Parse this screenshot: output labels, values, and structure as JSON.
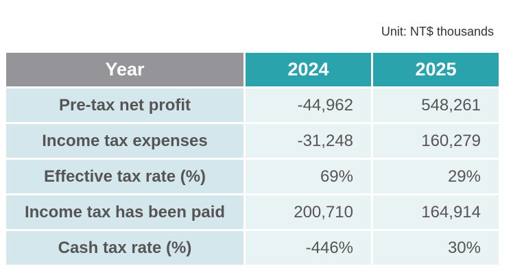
{
  "unit_note": "Unit: NT$ thousands",
  "table": {
    "headers": [
      "Year",
      "2024",
      "2025"
    ],
    "rows": [
      {
        "label": "Pre-tax net profit",
        "v2024": "-44,962",
        "v2025": "548,261"
      },
      {
        "label": "Income tax expenses",
        "v2024": "-31,248",
        "v2025": "160,279"
      },
      {
        "label": "Effective tax rate (%)",
        "v2024": "69%",
        "v2025": "29%"
      },
      {
        "label": "Income tax has been paid",
        "v2024": "200,710",
        "v2025": "164,914"
      },
      {
        "label": "Cash tax rate (%)",
        "v2024": "-446%",
        "v2025": "30%"
      }
    ]
  },
  "colors": {
    "header_year_bg": "#959599",
    "header_value_bg": "#2aa3ad",
    "label_cell_bg": "#d4e7ed",
    "value_cell_bg": "#e9f3f3",
    "text": "#555555"
  }
}
